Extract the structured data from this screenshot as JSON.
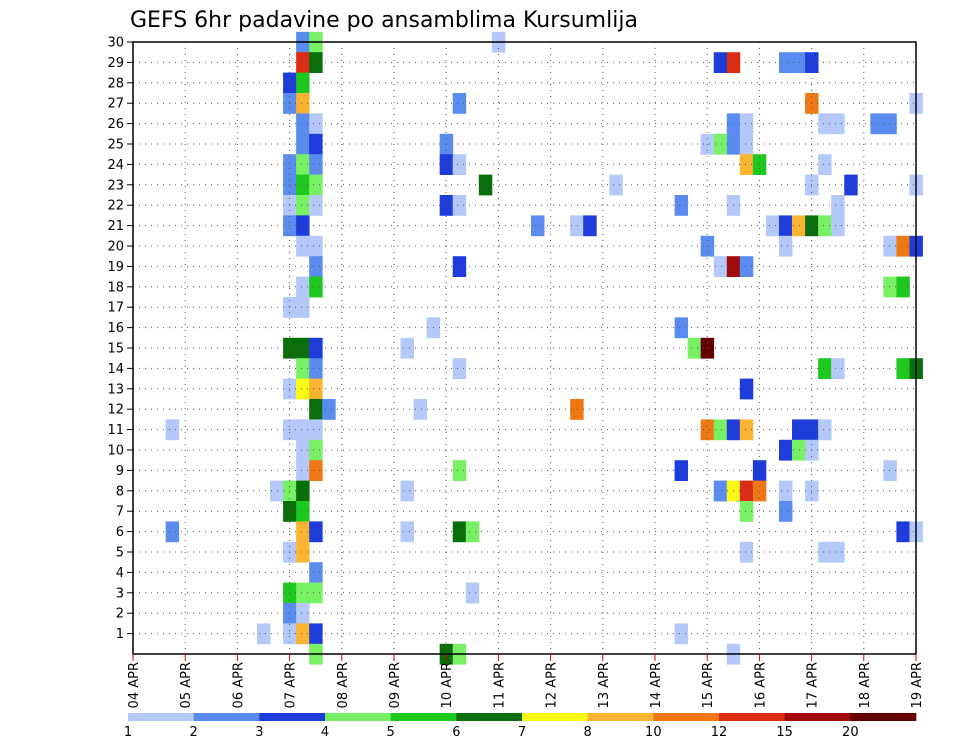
{
  "chart_data": {
    "type": "heatmap",
    "title": "GEFS 6hr padavine po ansamblima Kursumlija",
    "xlabel": "",
    "ylabel": "",
    "x_unit": "6-hour step (0 = 04 APR 00Z)",
    "x_range": [
      0,
      60
    ],
    "y_range": [
      0,
      30
    ],
    "x_ticks": [
      {
        "x": 0,
        "label": "04 APR"
      },
      {
        "x": 4,
        "label": "05 APR"
      },
      {
        "x": 8,
        "label": "06 APR"
      },
      {
        "x": 12,
        "label": "07 APR"
      },
      {
        "x": 16,
        "label": "08 APR"
      },
      {
        "x": 20,
        "label": "09 APR"
      },
      {
        "x": 24,
        "label": "10 APR"
      },
      {
        "x": 28,
        "label": "11 APR"
      },
      {
        "x": 32,
        "label": "12 APR"
      },
      {
        "x": 36,
        "label": "13 APR"
      },
      {
        "x": 40,
        "label": "14 APR"
      },
      {
        "x": 44,
        "label": "15 APR"
      },
      {
        "x": 48,
        "label": "16 APR"
      },
      {
        "x": 52,
        "label": "17 APR"
      },
      {
        "x": 56,
        "label": "18 APR"
      },
      {
        "x": 60,
        "label": "19 APR"
      }
    ],
    "y_ticks": [
      1,
      2,
      3,
      4,
      5,
      6,
      7,
      8,
      9,
      10,
      11,
      12,
      13,
      14,
      15,
      16,
      17,
      18,
      19,
      20,
      21,
      22,
      23,
      24,
      25,
      26,
      27,
      28,
      29,
      30
    ],
    "grid": true,
    "colorbar": {
      "levels": [
        "1",
        "2",
        "3",
        "4",
        "5",
        "6",
        "7",
        "8",
        "10",
        "12",
        "15",
        "20"
      ],
      "colors": [
        "#b4c8fa",
        "#5a8cf0",
        "#1e3cdc",
        "#78f064",
        "#1ec81e",
        "#0a6e0a",
        "#fafa14",
        "#fab432",
        "#f07814",
        "#dc2d14",
        "#a00a0a",
        "#640000"
      ]
    },
    "cells": [
      [
        13,
        30,
        1
      ],
      [
        14,
        30,
        3
      ],
      [
        28,
        30,
        0
      ],
      [
        13,
        29,
        9
      ],
      [
        14,
        29,
        5
      ],
      [
        45,
        29,
        2
      ],
      [
        46,
        29,
        9
      ],
      [
        50,
        29,
        1
      ],
      [
        51,
        29,
        1
      ],
      [
        52,
        29,
        2
      ],
      [
        12,
        28,
        2
      ],
      [
        13,
        28,
        4
      ],
      [
        12,
        27,
        1
      ],
      [
        13,
        27,
        7
      ],
      [
        25,
        27,
        1
      ],
      [
        52,
        27,
        8
      ],
      [
        60,
        27,
        0
      ],
      [
        13,
        26,
        1
      ],
      [
        14,
        26,
        0
      ],
      [
        46,
        26,
        1
      ],
      [
        47,
        26,
        0
      ],
      [
        53,
        26,
        0
      ],
      [
        54,
        26,
        0
      ],
      [
        57,
        26,
        1
      ],
      [
        58,
        26,
        1
      ],
      [
        13,
        25,
        1
      ],
      [
        14,
        25,
        2
      ],
      [
        24,
        25,
        1
      ],
      [
        44,
        25,
        0
      ],
      [
        45,
        25,
        3
      ],
      [
        46,
        25,
        1
      ],
      [
        47,
        25,
        0
      ],
      [
        12,
        24,
        1
      ],
      [
        13,
        24,
        3
      ],
      [
        14,
        24,
        1
      ],
      [
        24,
        24,
        2
      ],
      [
        25,
        24,
        0
      ],
      [
        47,
        24,
        7
      ],
      [
        48,
        24,
        4
      ],
      [
        53,
        24,
        0
      ],
      [
        12,
        23,
        1
      ],
      [
        13,
        23,
        4
      ],
      [
        14,
        23,
        3
      ],
      [
        27,
        23,
        5
      ],
      [
        37,
        23,
        0
      ],
      [
        52,
        23,
        0
      ],
      [
        55,
        23,
        2
      ],
      [
        60,
        23,
        0
      ],
      [
        12,
        22,
        0
      ],
      [
        13,
        22,
        3
      ],
      [
        14,
        22,
        0
      ],
      [
        24,
        22,
        2
      ],
      [
        25,
        22,
        0
      ],
      [
        42,
        22,
        1
      ],
      [
        46,
        22,
        0
      ],
      [
        54,
        22,
        0
      ],
      [
        12,
        21,
        1
      ],
      [
        13,
        21,
        2
      ],
      [
        31,
        21,
        1
      ],
      [
        34,
        21,
        0
      ],
      [
        35,
        21,
        2
      ],
      [
        49,
        21,
        0
      ],
      [
        50,
        21,
        2
      ],
      [
        51,
        21,
        7
      ],
      [
        52,
        21,
        5
      ],
      [
        53,
        21,
        3
      ],
      [
        54,
        21,
        0
      ],
      [
        13,
        20,
        0
      ],
      [
        14,
        20,
        0
      ],
      [
        44,
        20,
        1
      ],
      [
        50,
        20,
        0
      ],
      [
        58,
        20,
        0
      ],
      [
        59,
        20,
        8
      ],
      [
        60,
        20,
        2
      ],
      [
        14,
        19,
        1
      ],
      [
        25,
        19,
        2
      ],
      [
        45,
        19,
        0
      ],
      [
        46,
        19,
        10
      ],
      [
        47,
        19,
        1
      ],
      [
        13,
        18,
        0
      ],
      [
        14,
        18,
        4
      ],
      [
        58,
        18,
        3
      ],
      [
        59,
        18,
        4
      ],
      [
        12,
        17,
        0
      ],
      [
        13,
        17,
        0
      ],
      [
        23,
        16,
        0
      ],
      [
        42,
        16,
        1
      ],
      [
        12,
        15,
        5
      ],
      [
        13,
        15,
        5
      ],
      [
        14,
        15,
        2
      ],
      [
        21,
        15,
        0
      ],
      [
        43,
        15,
        3
      ],
      [
        44,
        15,
        11
      ],
      [
        13,
        14,
        3
      ],
      [
        14,
        14,
        1
      ],
      [
        25,
        14,
        0
      ],
      [
        53,
        14,
        4
      ],
      [
        54,
        14,
        0
      ],
      [
        59,
        14,
        4
      ],
      [
        60,
        14,
        5
      ],
      [
        12,
        13,
        0
      ],
      [
        13,
        13,
        6
      ],
      [
        14,
        13,
        7
      ],
      [
        47,
        13,
        2
      ],
      [
        14,
        12,
        5
      ],
      [
        15,
        12,
        1
      ],
      [
        22,
        12,
        0
      ],
      [
        34,
        12,
        8
      ],
      [
        3,
        11,
        0
      ],
      [
        12,
        11,
        0
      ],
      [
        13,
        11,
        0
      ],
      [
        14,
        11,
        0
      ],
      [
        44,
        11,
        8
      ],
      [
        45,
        11,
        3
      ],
      [
        46,
        11,
        2
      ],
      [
        47,
        11,
        7
      ],
      [
        51,
        11,
        2
      ],
      [
        52,
        11,
        2
      ],
      [
        53,
        11,
        0
      ],
      [
        13,
        10,
        0
      ],
      [
        14,
        10,
        3
      ],
      [
        50,
        10,
        2
      ],
      [
        51,
        10,
        3
      ],
      [
        52,
        10,
        0
      ],
      [
        13,
        9,
        0
      ],
      [
        14,
        9,
        8
      ],
      [
        25,
        9,
        3
      ],
      [
        42,
        9,
        2
      ],
      [
        48,
        9,
        2
      ],
      [
        58,
        9,
        0
      ],
      [
        11,
        8,
        0
      ],
      [
        12,
        8,
        3
      ],
      [
        13,
        8,
        5
      ],
      [
        21,
        8,
        0
      ],
      [
        45,
        8,
        1
      ],
      [
        46,
        8,
        6
      ],
      [
        47,
        8,
        9
      ],
      [
        48,
        8,
        8
      ],
      [
        50,
        8,
        0
      ],
      [
        52,
        8,
        0
      ],
      [
        12,
        7,
        5
      ],
      [
        13,
        7,
        4
      ],
      [
        47,
        7,
        3
      ],
      [
        50,
        7,
        1
      ],
      [
        3,
        6,
        1
      ],
      [
        13,
        6,
        7
      ],
      [
        14,
        6,
        2
      ],
      [
        21,
        6,
        0
      ],
      [
        25,
        6,
        5
      ],
      [
        26,
        6,
        3
      ],
      [
        59,
        6,
        2
      ],
      [
        60,
        6,
        0
      ],
      [
        12,
        5,
        0
      ],
      [
        13,
        5,
        7
      ],
      [
        47,
        5,
        0
      ],
      [
        53,
        5,
        0
      ],
      [
        54,
        5,
        0
      ],
      [
        14,
        4,
        1
      ],
      [
        12,
        3,
        4
      ],
      [
        13,
        3,
        3
      ],
      [
        14,
        3,
        3
      ],
      [
        26,
        3,
        0
      ],
      [
        12,
        2,
        1
      ],
      [
        13,
        2,
        0
      ],
      [
        10,
        1,
        0
      ],
      [
        12,
        1,
        0
      ],
      [
        13,
        1,
        7
      ],
      [
        14,
        1,
        2
      ],
      [
        42,
        1,
        0
      ],
      [
        14,
        0,
        3
      ],
      [
        24,
        0,
        5
      ],
      [
        25,
        0,
        3
      ],
      [
        46,
        0,
        0
      ]
    ]
  }
}
